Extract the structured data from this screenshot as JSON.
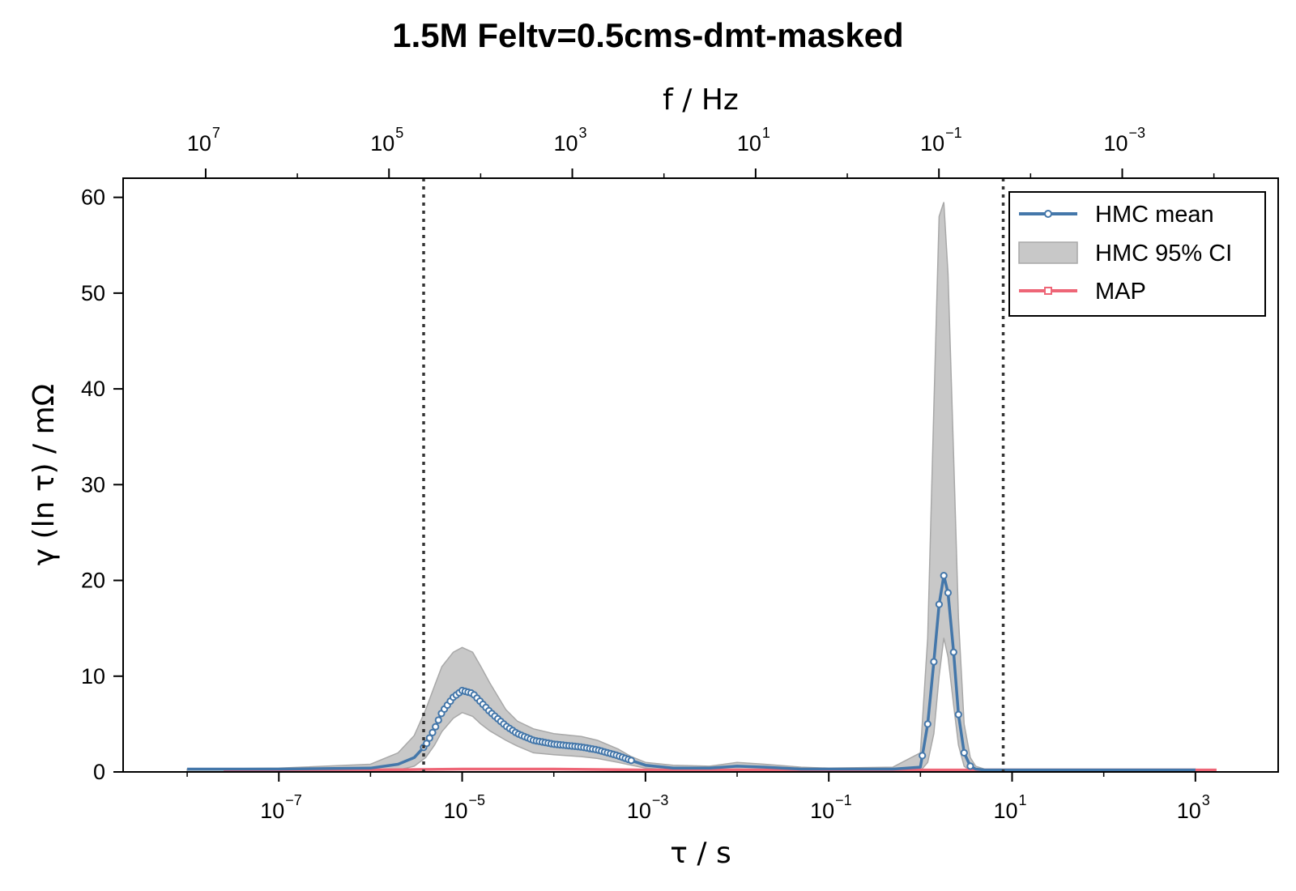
{
  "chart_data": {
    "type": "line",
    "title": "1.5M Feltv=0.5cms-dmt-masked",
    "xlabel": "τ / s",
    "x2label": "f / Hz",
    "ylabel": "γ (ln τ) / mΩ",
    "x_scale": "log",
    "xlim": [
      2e-09,
      8000.0
    ],
    "ylim": [
      0,
      62
    ],
    "grid": false,
    "legend_position": "top-right",
    "x_ticks": [
      {
        "base": "10",
        "exp": "−7",
        "value": 1e-07
      },
      {
        "base": "10",
        "exp": "−5",
        "value": 1e-05
      },
      {
        "base": "10",
        "exp": "−3",
        "value": 0.001
      },
      {
        "base": "10",
        "exp": "−1",
        "value": 0.1
      },
      {
        "base": "10",
        "exp": "1",
        "value": 10.0
      },
      {
        "base": "10",
        "exp": "3",
        "value": 1000.0
      }
    ],
    "x2_ticks": [
      {
        "base": "10",
        "exp": "7",
        "value": 10000000.0
      },
      {
        "base": "10",
        "exp": "5",
        "value": 100000.0
      },
      {
        "base": "10",
        "exp": "3",
        "value": 1000.0
      },
      {
        "base": "10",
        "exp": "1",
        "value": 10.0
      },
      {
        "base": "10",
        "exp": "−1",
        "value": 0.1
      },
      {
        "base": "10",
        "exp": "−3",
        "value": 0.001
      }
    ],
    "y_ticks": [
      "0",
      "10",
      "20",
      "30",
      "40",
      "50",
      "60"
    ],
    "vlines_tau": [
      3.8e-06,
      8.0
    ],
    "legend": {
      "hmc_mean": "HMC mean",
      "hmc_ci": "HMC 95% CI",
      "map": "MAP"
    },
    "colors": {
      "hmc_mean": "#4477aa",
      "hmc_ci_fill": "#c8c8c8",
      "hmc_ci_edge": "#a8a8a8",
      "map": "#ee6677",
      "vline": "#333333"
    },
    "series": [
      {
        "name": "HMC mean",
        "x": [
          1e-08,
          1e-07,
          1e-06,
          2e-06,
          3e-06,
          4e-06,
          5e-06,
          6e-06,
          8e-06,
          1e-05,
          1.3e-05,
          1.6e-05,
          2e-05,
          3e-05,
          4e-05,
          6e-05,
          0.0001,
          0.0002,
          0.0003,
          0.0005,
          0.0007,
          0.001,
          0.002,
          0.005,
          0.01,
          0.02,
          0.05,
          0.1,
          0.5,
          1.0,
          1.2,
          1.4,
          1.6,
          1.8,
          2.0,
          2.3,
          2.6,
          3.0,
          3.5,
          4.0,
          5.0,
          10,
          100,
          1000
        ],
        "y": [
          0.3,
          0.3,
          0.4,
          0.8,
          1.5,
          2.8,
          4.5,
          6.2,
          7.8,
          8.5,
          8.2,
          7.3,
          6.3,
          4.8,
          4.0,
          3.3,
          2.9,
          2.6,
          2.3,
          1.7,
          1.2,
          0.7,
          0.4,
          0.4,
          0.6,
          0.5,
          0.3,
          0.3,
          0.3,
          0.5,
          5.0,
          11.5,
          17.5,
          20.5,
          18.7,
          12.5,
          6.0,
          2.0,
          0.6,
          0.3,
          0.2,
          0.2,
          0.2,
          0.2
        ]
      },
      {
        "name": "HMC 95% CI",
        "x": [
          1e-08,
          1e-07,
          1e-06,
          2e-06,
          3e-06,
          4e-06,
          5e-06,
          6e-06,
          8e-06,
          1e-05,
          1.3e-05,
          1.6e-05,
          2e-05,
          3e-05,
          4e-05,
          6e-05,
          0.0001,
          0.0002,
          0.0003,
          0.0005,
          0.0007,
          0.001,
          0.002,
          0.005,
          0.01,
          0.02,
          0.05,
          0.1,
          0.5,
          1.0,
          1.2,
          1.4,
          1.6,
          1.8,
          2.0,
          2.3,
          2.6,
          3.0,
          3.5,
          4.0,
          5.0,
          10,
          100,
          1000
        ],
        "lower": [
          0,
          0,
          0,
          0.2,
          0.6,
          1.5,
          2.8,
          4.2,
          5.6,
          6.2,
          5.8,
          5.0,
          4.3,
          3.3,
          2.7,
          2.0,
          1.8,
          1.6,
          1.4,
          1.0,
          0.7,
          0.4,
          0.2,
          0.2,
          0.3,
          0.2,
          0.1,
          0,
          0,
          0.1,
          1.0,
          4.0,
          10.0,
          14.0,
          12.0,
          7.0,
          2.8,
          0.6,
          0.1,
          0,
          0,
          0,
          0,
          0
        ],
        "upper": [
          0.3,
          0.4,
          0.8,
          2.0,
          3.8,
          6.5,
          9.0,
          11.0,
          12.5,
          13.0,
          12.5,
          11.0,
          9.3,
          6.5,
          5.3,
          4.5,
          4.0,
          3.7,
          3.3,
          2.4,
          1.6,
          1.0,
          0.7,
          0.6,
          1.0,
          0.8,
          0.5,
          0.4,
          0.5,
          2.0,
          14.0,
          38.0,
          58.0,
          59.5,
          52.0,
          33.0,
          16.0,
          5.0,
          1.5,
          0.6,
          0.3,
          0.3,
          0.3,
          0.3
        ]
      },
      {
        "name": "MAP",
        "x": [
          2.5e-08,
          1e-07,
          1e-06,
          1e-05,
          0.0001,
          0.001,
          0.01,
          0.1,
          1,
          10,
          100,
          1700
        ],
        "y": [
          0.2,
          0.2,
          0.2,
          0.3,
          0.3,
          0.2,
          0.2,
          0.2,
          0.2,
          0.2,
          0.2,
          0.2
        ]
      }
    ]
  }
}
